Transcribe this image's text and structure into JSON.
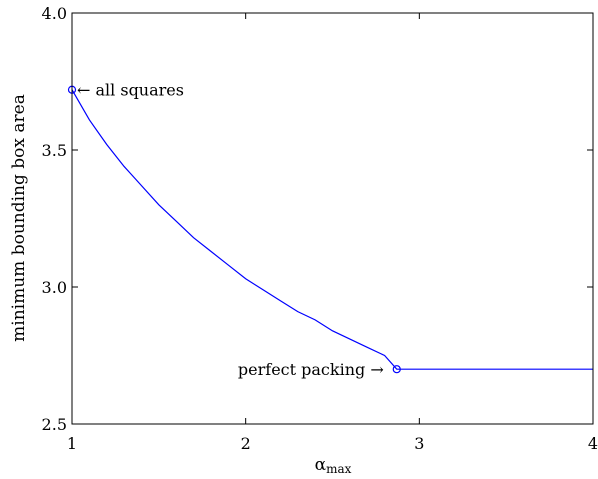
{
  "chart_data": {
    "type": "line",
    "title": "",
    "xlabel_main": "α",
    "xlabel_sub": "max",
    "ylabel": "minimum bounding box area",
    "xlim": [
      1,
      4
    ],
    "ylim": [
      2.5,
      4.0
    ],
    "xticks": [
      1,
      2,
      3,
      4
    ],
    "xtick_labels": [
      "1",
      "2",
      "3",
      "4"
    ],
    "yticks": [
      2.5,
      3.0,
      3.5,
      4.0
    ],
    "ytick_labels": [
      "2.5",
      "3.0",
      "3.5",
      "4.0"
    ],
    "grid": false,
    "line_color": "#0000ff",
    "series": [
      {
        "x": [
          1.0,
          1.1,
          1.2,
          1.3,
          1.4,
          1.5,
          1.6,
          1.7,
          1.8,
          1.9,
          2.0,
          2.1,
          2.2,
          2.3,
          2.4,
          2.5,
          2.6,
          2.7,
          2.8,
          2.87,
          3.0,
          3.5,
          4.0
        ],
        "y": [
          3.72,
          3.61,
          3.52,
          3.44,
          3.37,
          3.3,
          3.24,
          3.18,
          3.13,
          3.08,
          3.03,
          2.99,
          2.95,
          2.91,
          2.88,
          2.84,
          2.81,
          2.78,
          2.75,
          2.7,
          2.7,
          2.7,
          2.7
        ]
      }
    ],
    "annotations": [
      {
        "text": "← all squares",
        "x": 1.0,
        "y": 3.72,
        "marker": "circle",
        "side": "right"
      },
      {
        "text": "perfect packing →",
        "x": 2.87,
        "y": 2.7,
        "marker": "circle",
        "side": "left"
      }
    ]
  }
}
